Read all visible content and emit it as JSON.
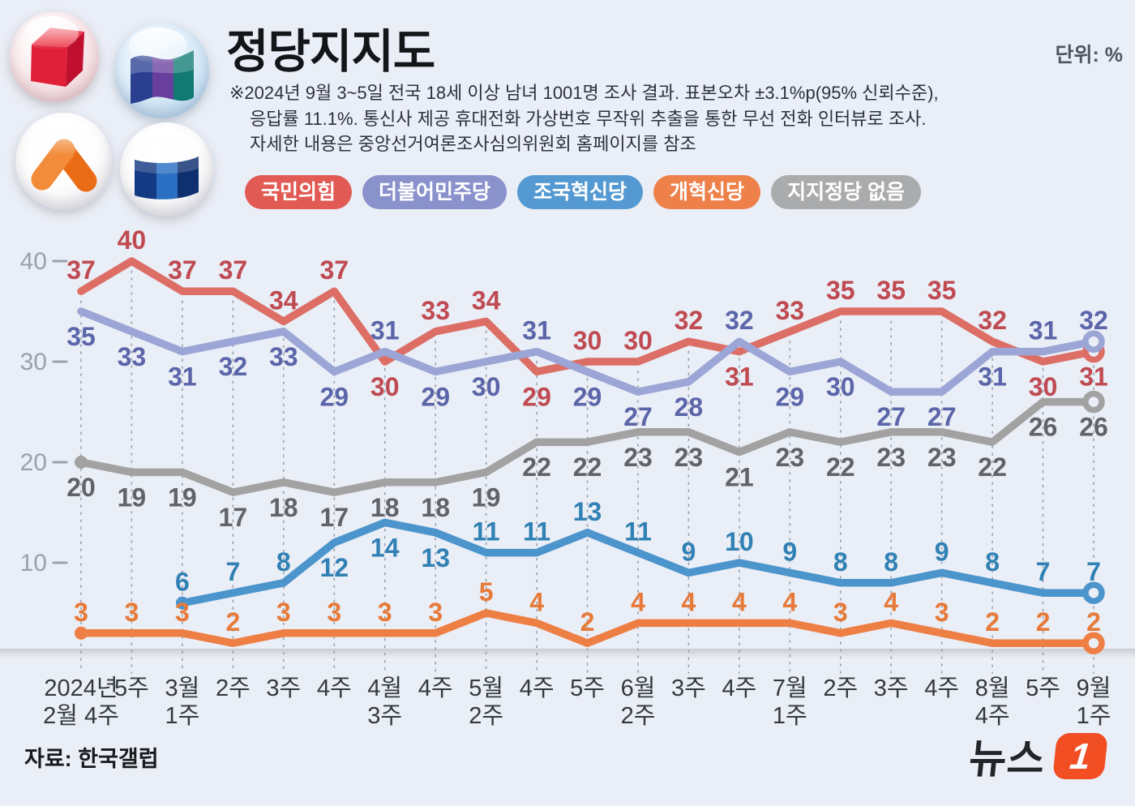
{
  "header": {
    "title": "정당지지도",
    "unit_label": "단위: %",
    "notes": [
      "※2024년  9월 3~5일 전국 18세 이상 남녀 1001명 조사 결과. 표본오차 ±3.1%p(95% 신뢰수준),",
      "응답률 11.1%. 통신사 제공 휴대전화 가상번호 무작위 추출을 통한 무선 전화 인터뷰로 조사.",
      "자세한 내용은 중앙선거여론조사심의위원회 홈페이지를 참조"
    ],
    "logos": [
      {
        "name": "peoples-power-party-cube-logo"
      },
      {
        "name": "rebuilding-korea-party-flag-logo"
      },
      {
        "name": "reform-party-chevron-logo"
      },
      {
        "name": "democratic-party-banner-logo"
      }
    ]
  },
  "footer": {
    "source": "자료: 한국갤럽",
    "brand_text": "뉴스",
    "brand_number": "1"
  },
  "colors": {
    "background": "#eaeef6",
    "gridline": "#98a0ab",
    "axis_text": "#9aa1ac",
    "xaxis_text": "#34383f",
    "band_top": "#c9cdd5",
    "band_mid": "#e0e3e9",
    "band_bottom": "#f2f3f6"
  },
  "chart_data": {
    "type": "line",
    "title": "정당지지도",
    "unit": "%",
    "ylim": [
      0,
      42
    ],
    "y_ticks": [
      40,
      30,
      20,
      10
    ],
    "grid": "vertical-dashed",
    "legend_position": "top",
    "x_categories": [
      [
        "2024년",
        "2월 4주"
      ],
      [
        "5주"
      ],
      [
        "3월",
        "1주"
      ],
      [
        "2주"
      ],
      [
        "3주"
      ],
      [
        "4주"
      ],
      [
        "4월",
        "3주"
      ],
      [
        "4주"
      ],
      [
        "5월",
        "2주"
      ],
      [
        "4주"
      ],
      [
        "5주"
      ],
      [
        "6월",
        "2주"
      ],
      [
        "3주"
      ],
      [
        "4주"
      ],
      [
        "7월",
        "1주"
      ],
      [
        "2주"
      ],
      [
        "3주"
      ],
      [
        "4주"
      ],
      [
        "8월",
        "4주"
      ],
      [
        "5주"
      ],
      [
        "9월",
        "1주"
      ]
    ],
    "series": [
      {
        "name": "국민의힘",
        "legend_color": "#e15b54",
        "line_color": "#dc6e66",
        "label_color": "#bf4a52",
        "values": [
          37,
          40,
          37,
          37,
          34,
          37,
          30,
          33,
          34,
          29,
          30,
          30,
          32,
          31,
          33,
          35,
          35,
          35,
          32,
          30,
          31
        ]
      },
      {
        "name": "더불어민주당",
        "legend_color": "#8a92cc",
        "line_color": "#9ba6d6",
        "label_color": "#5b65a9",
        "values": [
          35,
          33,
          31,
          32,
          33,
          29,
          31,
          29,
          30,
          31,
          29,
          27,
          28,
          32,
          29,
          30,
          27,
          27,
          31,
          31,
          32
        ]
      },
      {
        "name": "조국혁신당",
        "legend_color": "#5499d2",
        "line_color": "#4b94cc",
        "label_color": "#3181b5",
        "values": [
          null,
          null,
          6,
          7,
          8,
          12,
          14,
          13,
          11,
          11,
          13,
          11,
          9,
          10,
          9,
          8,
          8,
          9,
          8,
          7,
          7
        ]
      },
      {
        "name": "개혁신당",
        "legend_color": "#ee8049",
        "line_color": "#ee7f44",
        "label_color": "#e77a39",
        "values": [
          3,
          3,
          3,
          2,
          3,
          3,
          3,
          3,
          5,
          4,
          2,
          4,
          4,
          4,
          4,
          3,
          4,
          3,
          2,
          2,
          2
        ]
      },
      {
        "name": "지지정당 없음",
        "legend_color": "#aaabad",
        "line_color": "#a2a2a2",
        "label_color": "#60646a",
        "values": [
          20,
          19,
          19,
          17,
          18,
          17,
          18,
          18,
          19,
          22,
          22,
          23,
          23,
          21,
          23,
          22,
          23,
          23,
          22,
          26,
          26
        ]
      }
    ]
  }
}
